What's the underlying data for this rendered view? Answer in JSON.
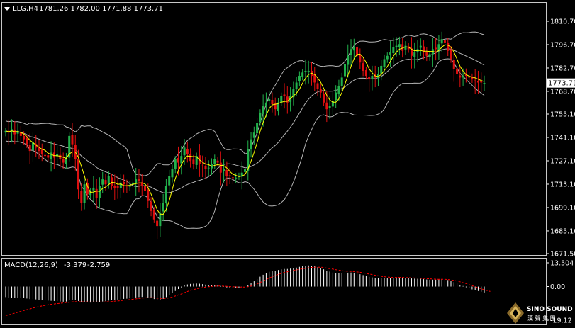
{
  "header": {
    "symbol": "LLG,H4",
    "ohlc": "1781.26 1782.00 1771.88 1773.71"
  },
  "macd_header": {
    "label": "MACD(12,26,9)",
    "macd_value": "-3.379",
    "signal_value": "-2.759"
  },
  "colors": {
    "background": "#000000",
    "bull_candle": "#22b24c",
    "bear_candle": "#e01010",
    "ma_line": "#ffff00",
    "band_line": "#b4b4b4",
    "macd_histogram": "#ffffff",
    "macd_signal": "#ff0000",
    "axis": "#ffffff",
    "current_price_box": "#ffffff"
  },
  "chart_data": [
    {
      "type": "candlestick",
      "title": "",
      "ylim": [
        1671.5,
        1810.7
      ],
      "y_ticks": [
        "1810.70",
        "1796.70",
        "1782.70",
        "1768.70",
        "1755.10",
        "1741.10",
        "1727.10",
        "1713.10",
        "1699.10",
        "1685.10",
        "1671.50"
      ],
      "current_price": "1773.71",
      "indicators": [
        "Moving average (yellow)",
        "Bollinger bands (grey)"
      ],
      "close": [
        1745,
        1744,
        1746,
        1743,
        1745,
        1742,
        1740,
        1737,
        1733,
        1738,
        1735,
        1733,
        1731,
        1730,
        1729,
        1732,
        1729,
        1731,
        1728,
        1726,
        1729,
        1742,
        1737,
        1728,
        1710,
        1702,
        1713,
        1707,
        1709,
        1711,
        1705,
        1712,
        1716,
        1713,
        1718,
        1712,
        1711,
        1711,
        1714,
        1713,
        1712,
        1712,
        1714,
        1716,
        1715,
        1712,
        1709,
        1703,
        1697,
        1692,
        1688,
        1696,
        1702,
        1712,
        1718,
        1722,
        1728,
        1726,
        1730,
        1735,
        1731,
        1727,
        1725,
        1730,
        1725,
        1724,
        1722,
        1723,
        1725,
        1728,
        1726,
        1720,
        1722,
        1718,
        1718,
        1717,
        1717,
        1718,
        1720,
        1722,
        1734,
        1740,
        1744,
        1750,
        1756,
        1760,
        1762,
        1764,
        1761,
        1758,
        1762,
        1766,
        1766,
        1762,
        1766,
        1770,
        1774,
        1778,
        1780,
        1781,
        1781,
        1778,
        1774,
        1770,
        1768,
        1762,
        1758,
        1760,
        1763,
        1768,
        1772,
        1777,
        1785,
        1790,
        1794,
        1795,
        1790,
        1786,
        1781,
        1778,
        1776,
        1778,
        1777,
        1779,
        1784,
        1788,
        1790,
        1792,
        1795,
        1796,
        1797,
        1793,
        1796,
        1794,
        1790,
        1792,
        1794,
        1796,
        1792,
        1790,
        1791,
        1794,
        1794,
        1797,
        1800,
        1798,
        1793,
        1788,
        1782,
        1779,
        1777,
        1778,
        1778,
        1777,
        1776,
        1775,
        1774,
        1774,
        1773.71
      ],
      "macd_panel": {
        "ylim": [
          -19.12,
          13.504
        ],
        "y_ticks": [
          "13.504",
          "0.00",
          "-19.12"
        ],
        "histogram": [
          -6,
          -6.2,
          -6.3,
          -6.4,
          -6.3,
          -6.4,
          -6.6,
          -6.8,
          -7.1,
          -7.1,
          -7.3,
          -7.5,
          -7.7,
          -7.9,
          -8.0,
          -8.1,
          -8.2,
          -8.3,
          -8.5,
          -8.6,
          -8.5,
          -7.8,
          -7.5,
          -7.6,
          -8.2,
          -8.8,
          -8.9,
          -9.0,
          -9.1,
          -9.0,
          -9.0,
          -8.8,
          -8.5,
          -8.3,
          -8.0,
          -7.8,
          -7.6,
          -7.4,
          -7.2,
          -7.0,
          -6.9,
          -6.7,
          -6.4,
          -6.2,
          -6.0,
          -5.9,
          -5.9,
          -6.2,
          -6.6,
          -7.1,
          -7.6,
          -7.5,
          -7.0,
          -6.0,
          -4.9,
          -3.8,
          -2.5,
          -1.4,
          -0.5,
          0.6,
          1.2,
          1.5,
          1.6,
          1.7,
          1.6,
          1.4,
          1.1,
          0.9,
          0.8,
          0.8,
          0.7,
          0.3,
          -0.1,
          -0.5,
          -0.6,
          -0.7,
          -0.7,
          -0.6,
          -0.4,
          -0.2,
          0.8,
          1.9,
          3.0,
          4.3,
          5.6,
          6.7,
          7.6,
          8.4,
          8.8,
          9.0,
          9.4,
          9.8,
          10.0,
          10.0,
          10.2,
          10.5,
          10.8,
          11.2,
          11.5,
          11.8,
          12.0,
          11.8,
          11.5,
          11.0,
          10.5,
          9.8,
          9.0,
          8.5,
          8.0,
          7.8,
          7.6,
          7.5,
          7.7,
          7.9,
          8.0,
          7.9,
          7.5,
          7.0,
          6.5,
          6.0,
          5.5,
          5.2,
          4.9,
          4.7,
          4.7,
          4.8,
          4.9,
          5.0,
          5.1,
          5.2,
          5.2,
          5.0,
          4.9,
          4.8,
          4.6,
          4.5,
          4.4,
          4.4,
          4.2,
          4.0,
          3.9,
          3.9,
          3.9,
          4.0,
          4.1,
          4.0,
          3.7,
          3.2,
          2.5,
          1.8,
          1.0,
          0.3,
          -0.4,
          -1.0,
          -1.6,
          -2.1,
          -2.5,
          -2.9,
          -3.379
        ],
        "signal": [
          -16.5,
          -16.0,
          -15.6,
          -15.1,
          -14.6,
          -14.1,
          -13.6,
          -13.1,
          -12.7,
          -12.2,
          -11.8,
          -11.4,
          -11.0,
          -10.7,
          -10.4,
          -10.1,
          -9.9,
          -9.7,
          -9.5,
          -9.3,
          -9.1,
          -8.9,
          -8.7,
          -8.6,
          -8.6,
          -8.6,
          -8.7,
          -8.7,
          -8.8,
          -8.8,
          -8.8,
          -8.8,
          -8.8,
          -8.7,
          -8.6,
          -8.5,
          -8.3,
          -8.2,
          -8.0,
          -7.8,
          -7.6,
          -7.4,
          -7.2,
          -7.0,
          -6.8,
          -6.6,
          -6.4,
          -6.3,
          -6.3,
          -6.4,
          -6.6,
          -6.7,
          -6.8,
          -6.7,
          -6.4,
          -6.0,
          -5.4,
          -4.8,
          -4.2,
          -3.5,
          -2.8,
          -2.2,
          -1.7,
          -1.3,
          -0.9,
          -0.6,
          -0.3,
          -0.1,
          0.1,
          0.2,
          0.3,
          0.3,
          0.2,
          0.1,
          0.0,
          -0.1,
          -0.2,
          -0.3,
          -0.3,
          -0.3,
          -0.1,
          0.3,
          0.8,
          1.5,
          2.3,
          3.1,
          4.0,
          4.8,
          5.6,
          6.3,
          6.9,
          7.5,
          8.0,
          8.4,
          8.8,
          9.2,
          9.5,
          9.8,
          10.1,
          10.4,
          10.7,
          10.9,
          11.0,
          11.0,
          11.0,
          10.8,
          10.5,
          10.2,
          9.9,
          9.6,
          9.3,
          9.0,
          8.8,
          8.7,
          8.6,
          8.5,
          8.3,
          8.1,
          7.8,
          7.5,
          7.1,
          6.8,
          6.4,
          6.1,
          5.8,
          5.6,
          5.4,
          5.3,
          5.2,
          5.2,
          5.2,
          5.2,
          5.1,
          5.1,
          5.0,
          4.9,
          4.8,
          4.7,
          4.6,
          4.5,
          4.4,
          4.3,
          4.2,
          4.1,
          4.1,
          4.1,
          4.0,
          3.8,
          3.5,
          3.1,
          2.7,
          2.2,
          1.7,
          1.1,
          0.5,
          -0.1,
          -0.7,
          -1.3,
          -1.8,
          -2.3,
          -2.759
        ]
      }
    }
  ],
  "brand": {
    "name_en": "SINO SOUND",
    "name_cn": "漢 聲 集 團"
  }
}
